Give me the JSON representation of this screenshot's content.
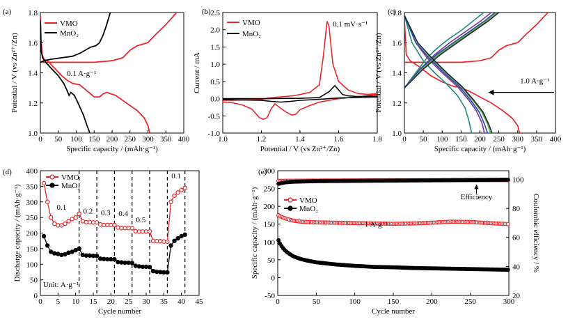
{
  "chart_data": [
    {
      "panel": "(a)",
      "type": "line",
      "xlabel": "Specific capacity / (mAh·g⁻¹)",
      "ylabel": "Potential / V (vs Zn²⁺/Zn)",
      "xlim": [
        0,
        400
      ],
      "ylim": [
        1.0,
        1.8
      ],
      "xticks": [
        "0",
        "50",
        "100",
        "150",
        "200",
        "250",
        "300",
        "350",
        "400"
      ],
      "yticks": [
        "1.0",
        "1.2",
        "1.4",
        "1.6",
        "1.8"
      ],
      "legend": [
        {
          "name": "VMO",
          "color": "#e8262b"
        },
        {
          "name": "MnO₂",
          "color": "#000000"
        }
      ],
      "annotations": [
        "0.1 A·g⁻¹"
      ],
      "series": [
        {
          "name": "VMO discharge",
          "color": "#e8262b",
          "x": [
            0,
            2,
            5,
            10,
            20,
            40,
            60,
            75,
            90,
            110,
            130,
            150,
            165,
            175,
            185,
            210,
            240,
            270,
            290,
            300,
            305
          ],
          "y": [
            1.78,
            1.62,
            1.52,
            1.49,
            1.48,
            1.43,
            1.38,
            1.35,
            1.33,
            1.32,
            1.28,
            1.24,
            1.24,
            1.26,
            1.27,
            1.25,
            1.2,
            1.15,
            1.1,
            1.05,
            1.0
          ]
        },
        {
          "name": "VMO charge",
          "color": "#e8262b",
          "x": [
            0,
            20,
            50,
            100,
            150,
            200,
            230,
            250,
            270,
            300,
            320,
            350,
            380
          ],
          "y": [
            1.47,
            1.47,
            1.47,
            1.47,
            1.47,
            1.48,
            1.5,
            1.55,
            1.58,
            1.6,
            1.65,
            1.72,
            1.8
          ]
        },
        {
          "name": "MnO₂ discharge",
          "color": "#000000",
          "x": [
            0,
            2,
            6,
            15,
            30,
            50,
            65,
            75,
            80,
            85,
            95,
            105,
            120,
            130,
            138
          ],
          "y": [
            1.75,
            1.55,
            1.5,
            1.47,
            1.43,
            1.38,
            1.33,
            1.28,
            1.25,
            1.27,
            1.25,
            1.2,
            1.12,
            1.05,
            1.0
          ]
        },
        {
          "name": "MnO₂ charge",
          "color": "#000000",
          "x": [
            0,
            10,
            30,
            60,
            90,
            110,
            125,
            140,
            155,
            165,
            175,
            185,
            195
          ],
          "y": [
            1.47,
            1.48,
            1.49,
            1.5,
            1.51,
            1.53,
            1.55,
            1.57,
            1.58,
            1.6,
            1.65,
            1.72,
            1.8
          ]
        }
      ]
    },
    {
      "panel": "(b)",
      "type": "line",
      "xlabel": "Potential / V (vs Zn²⁺/Zn)",
      "ylabel": "Current / mA",
      "xlim": [
        1.0,
        1.8
      ],
      "ylim": [
        -1.0,
        2.5
      ],
      "xticks": [
        "1.0",
        "1.2",
        "1.4",
        "1.6",
        "1.8"
      ],
      "yticks": [
        "-1.0",
        "-0.5",
        "0.0",
        "0.5",
        "1.0",
        "1.5",
        "2.0",
        "2.5"
      ],
      "legend": [
        {
          "name": "VMO",
          "color": "#e8262b"
        },
        {
          "name": "MnO₂",
          "color": "#000000"
        }
      ],
      "annotations": [
        "0.1 mV·s⁻¹"
      ],
      "series": [
        {
          "name": "VMO",
          "color": "#e8262b",
          "x": [
            1.0,
            1.05,
            1.1,
            1.15,
            1.2,
            1.22,
            1.24,
            1.26,
            1.28,
            1.32,
            1.36,
            1.4,
            1.45,
            1.5,
            1.52,
            1.54,
            1.55,
            1.57,
            1.6,
            1.65,
            1.7,
            1.75,
            1.8,
            1.8,
            1.7,
            1.6,
            1.5,
            1.45,
            1.4,
            1.38,
            1.36,
            1.33,
            1.3,
            1.27,
            1.25,
            1.23,
            1.21,
            1.19,
            1.15,
            1.1,
            1.05,
            1.0
          ],
          "y": [
            -0.05,
            -0.05,
            -0.04,
            -0.03,
            -0.02,
            0.0,
            0.02,
            0.03,
            0.04,
            0.06,
            0.08,
            0.12,
            0.18,
            0.4,
            1.2,
            2.25,
            2.1,
            1.0,
            0.5,
            0.25,
            0.15,
            0.12,
            0.15,
            0.12,
            0.05,
            0.0,
            -0.1,
            -0.2,
            -0.32,
            -0.45,
            -0.48,
            -0.4,
            -0.28,
            -0.15,
            -0.3,
            -0.55,
            -0.6,
            -0.55,
            -0.3,
            -0.18,
            -0.12,
            -0.1
          ]
        },
        {
          "name": "MnO₂",
          "color": "#000000",
          "x": [
            1.0,
            1.2,
            1.4,
            1.5,
            1.55,
            1.58,
            1.6,
            1.62,
            1.65,
            1.7,
            1.8,
            1.8,
            1.6,
            1.5,
            1.4,
            1.35,
            1.3,
            1.25,
            1.2,
            1.0
          ],
          "y": [
            0.0,
            0.0,
            0.01,
            0.03,
            0.2,
            0.38,
            0.25,
            0.12,
            0.08,
            0.06,
            0.07,
            0.05,
            0.02,
            -0.02,
            -0.05,
            -0.08,
            -0.1,
            -0.08,
            -0.05,
            -0.03
          ]
        }
      ]
    },
    {
      "panel": "(c)",
      "type": "line",
      "xlabel": "Specific capacity / (mAh·g⁻¹)",
      "ylabel": "Potential / V (vs Zn²⁺/Zn)",
      "xlim": [
        0,
        400
      ],
      "ylim": [
        1.0,
        1.8
      ],
      "xticks": [
        "0",
        "50",
        "100",
        "150",
        "200",
        "250",
        "300",
        "350",
        "400"
      ],
      "yticks": [
        "1.0",
        "1.2",
        "1.4",
        "1.6",
        "1.8"
      ],
      "annotations": [
        "1.0 A·g⁻¹"
      ],
      "series": [
        {
          "name": "red discharge",
          "color": "#e8262b",
          "x": [
            0,
            5,
            15,
            40,
            70,
            100,
            130,
            150,
            170,
            200,
            230,
            260,
            285,
            300,
            305
          ],
          "y": [
            1.75,
            1.52,
            1.48,
            1.44,
            1.38,
            1.34,
            1.31,
            1.3,
            1.28,
            1.24,
            1.2,
            1.15,
            1.1,
            1.05,
            1.0
          ]
        },
        {
          "name": "red charge",
          "color": "#e8262b",
          "x": [
            0,
            50,
            100,
            150,
            200,
            230,
            250,
            270,
            300,
            320,
            350,
            380
          ],
          "y": [
            1.47,
            1.47,
            1.47,
            1.47,
            1.48,
            1.5,
            1.55,
            1.58,
            1.6,
            1.65,
            1.72,
            1.8
          ]
        },
        {
          "name": "teal",
          "color": "#2a8c88",
          "x": [
            0,
            20,
            50,
            80,
            110,
            140,
            160,
            170,
            178
          ],
          "y": [
            1.78,
            1.6,
            1.48,
            1.4,
            1.33,
            1.25,
            1.17,
            1.09,
            1.0
          ],
          "x2": [
            0,
            30,
            60,
            90,
            120,
            150,
            180,
            210
          ],
          "y2": [
            1.3,
            1.4,
            1.5,
            1.57,
            1.63,
            1.68,
            1.74,
            1.8
          ]
        },
        {
          "name": "purple",
          "color": "#7a3f9a",
          "x": [
            0,
            30,
            60,
            100,
            140,
            170,
            190,
            205,
            212
          ],
          "y": [
            1.78,
            1.6,
            1.5,
            1.4,
            1.31,
            1.22,
            1.15,
            1.07,
            1.0
          ],
          "x2": [
            0,
            40,
            80,
            120,
            160,
            200,
            230
          ],
          "y2": [
            1.3,
            1.42,
            1.52,
            1.6,
            1.67,
            1.74,
            1.8
          ]
        },
        {
          "name": "blue",
          "color": "#2a4ea0",
          "x": [
            0,
            30,
            65,
            105,
            145,
            175,
            198,
            212,
            220
          ],
          "y": [
            1.78,
            1.6,
            1.5,
            1.4,
            1.31,
            1.22,
            1.14,
            1.06,
            1.0
          ],
          "x2": [
            0,
            40,
            85,
            130,
            170,
            210,
            240
          ],
          "y2": [
            1.3,
            1.42,
            1.52,
            1.6,
            1.67,
            1.74,
            1.8
          ]
        },
        {
          "name": "green",
          "color": "#6fae3a",
          "x": [
            0,
            35,
            70,
            110,
            150,
            180,
            205,
            220,
            228
          ],
          "y": [
            1.78,
            1.6,
            1.5,
            1.4,
            1.31,
            1.22,
            1.14,
            1.06,
            1.0
          ],
          "x2": [
            0,
            45,
            90,
            135,
            175,
            215,
            245
          ],
          "y2": [
            1.3,
            1.42,
            1.52,
            1.6,
            1.67,
            1.74,
            1.8
          ]
        },
        {
          "name": "dark",
          "color": "#1f2a44",
          "x": [
            0,
            35,
            72,
            112,
            152,
            183,
            208,
            223,
            232
          ],
          "y": [
            1.78,
            1.6,
            1.5,
            1.4,
            1.31,
            1.22,
            1.14,
            1.06,
            1.0
          ],
          "x2": [
            0,
            48,
            95,
            140,
            180,
            220,
            250
          ],
          "y2": [
            1.3,
            1.42,
            1.52,
            1.6,
            1.67,
            1.74,
            1.8
          ]
        }
      ]
    },
    {
      "panel": "(d)",
      "type": "line",
      "xlabel": "Cycle number",
      "ylabel": "Discharge capacity / (mAh·g⁻¹)",
      "xlim": [
        0,
        45
      ],
      "ylim": [
        0,
        400
      ],
      "xticks": [
        "0",
        "5",
        "10",
        "15",
        "20",
        "25",
        "30",
        "35",
        "40",
        "45"
      ],
      "yticks": [
        "0",
        "50",
        "100",
        "150",
        "200",
        "250",
        "300",
        "350",
        "400"
      ],
      "legend": [
        {
          "name": "VMO",
          "color": "#e8262b"
        },
        {
          "name": "MnO₂",
          "color": "#000000"
        }
      ],
      "rate_labels": [
        "0.1",
        "0.2",
        "0.3",
        "0.4",
        "0.5",
        "0.1"
      ],
      "unit_label": "Unit: A·g⁻¹",
      "dividers": [
        11,
        16,
        21,
        26,
        31,
        36,
        41
      ],
      "series": [
        {
          "name": "VMO",
          "color": "#e8262b",
          "x": [
            1,
            2,
            3,
            4,
            5,
            6,
            7,
            8,
            9,
            10,
            11,
            12,
            13,
            14,
            15,
            16,
            17,
            18,
            19,
            20,
            21,
            22,
            23,
            24,
            25,
            26,
            27,
            28,
            29,
            30,
            31,
            32,
            33,
            34,
            35,
            36,
            37,
            38,
            39,
            40,
            41
          ],
          "y": [
            360,
            300,
            250,
            230,
            225,
            225,
            230,
            238,
            245,
            250,
            262,
            238,
            235,
            235,
            234,
            234,
            228,
            226,
            226,
            226,
            226,
            218,
            216,
            216,
            216,
            216,
            206,
            205,
            205,
            205,
            205,
            175,
            174,
            174,
            173,
            172,
            300,
            320,
            330,
            338,
            345
          ]
        },
        {
          "name": "MnO₂",
          "color": "#000000",
          "x": [
            1,
            2,
            3,
            4,
            5,
            6,
            7,
            8,
            9,
            10,
            11,
            12,
            13,
            14,
            15,
            16,
            17,
            18,
            19,
            20,
            21,
            22,
            23,
            24,
            25,
            26,
            27,
            28,
            29,
            30,
            31,
            32,
            33,
            34,
            35,
            36,
            37,
            38,
            39,
            40,
            41
          ],
          "y": [
            190,
            160,
            140,
            135,
            133,
            130,
            132,
            137,
            140,
            145,
            150,
            130,
            128,
            128,
            127,
            127,
            118,
            117,
            116,
            116,
            116,
            107,
            106,
            105,
            105,
            104,
            95,
            93,
            92,
            92,
            91,
            78,
            76,
            75,
            74,
            74,
            160,
            175,
            183,
            190,
            195
          ]
        }
      ]
    },
    {
      "panel": "(e)",
      "type": "scatter",
      "xlabel": "Cycle number",
      "ylabel": "Specific capacity / (mAh·g⁻¹)",
      "ylabel_right": "Coulombic efficiency / %",
      "xlim": [
        0,
        300
      ],
      "ylim": [
        -50,
        300
      ],
      "ylim_right": [
        20,
        106
      ],
      "xticks": [
        "0",
        "50",
        "100",
        "150",
        "200",
        "250",
        "300"
      ],
      "yticks": [
        "-50",
        "0",
        "50",
        "100",
        "150",
        "200",
        "250",
        "300"
      ],
      "yticks_right": [
        "20",
        "40",
        "60",
        "80",
        "100"
      ],
      "legend": [
        {
          "name": "VMO",
          "color": "#e8262b"
        },
        {
          "name": "MnO₂",
          "color": "#000000"
        }
      ],
      "annotations": [
        "1 A·g⁻¹",
        "Efficiency"
      ],
      "series": [
        {
          "name": "VMO capacity",
          "color": "#e8262b",
          "x": [
            1,
            5,
            10,
            20,
            30,
            50,
            75,
            100,
            125,
            150,
            175,
            200,
            225,
            250,
            275,
            300
          ],
          "y": [
            175,
            170,
            166,
            160,
            157,
            155,
            154,
            153,
            152,
            151,
            152,
            154,
            157,
            156,
            153,
            150
          ]
        },
        {
          "name": "MnO₂ capacity",
          "color": "#000000",
          "x": [
            1,
            3,
            6,
            10,
            15,
            20,
            30,
            40,
            50,
            75,
            100,
            125,
            150,
            175,
            200,
            225,
            250,
            275,
            300
          ],
          "y": [
            105,
            95,
            85,
            75,
            67,
            60,
            52,
            47,
            43,
            37,
            33,
            30,
            29,
            27,
            26,
            25,
            24,
            23,
            22
          ]
        },
        {
          "name": "VMO efficiency",
          "color": "#e8262b",
          "x": [
            1,
            50,
            100,
            150,
            200,
            250,
            300
          ],
          "y": [
            99,
            99.2,
            99.3,
            99.4,
            99.4,
            99.5,
            99.5
          ]
        },
        {
          "name": "MnO₂ efficiency",
          "color": "#000000",
          "x": [
            1,
            10,
            20,
            50,
            100,
            150,
            200,
            250,
            300
          ],
          "y": [
            97,
            98,
            98.4,
            98.8,
            99.0,
            99.2,
            99.4,
            99.6,
            99.8
          ]
        }
      ]
    }
  ]
}
